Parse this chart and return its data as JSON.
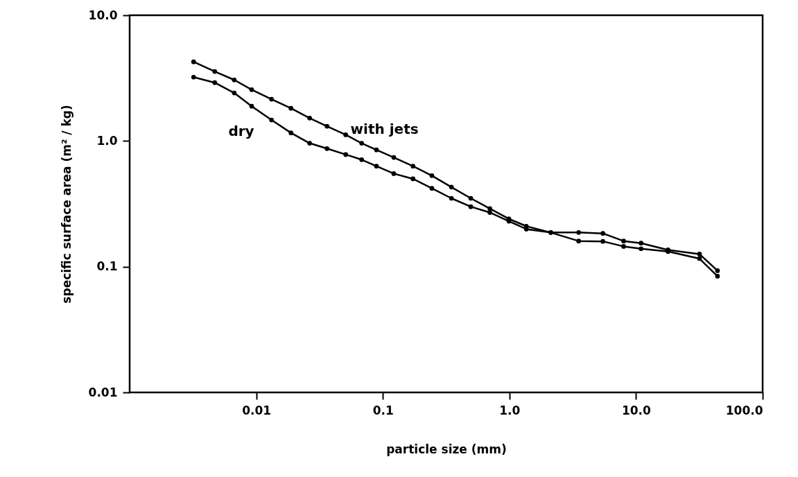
{
  "chart_data": {
    "type": "line",
    "xlabel": "particle size (mm)",
    "ylabel": "specific surface area (m² / kg)",
    "log": "xy",
    "grid": false,
    "marker": "circle",
    "line_style": "solid",
    "xlim": [
      0.001,
      100
    ],
    "xticks": [
      0.01,
      0.1,
      {
        "value": 1,
        "label": "1.0"
      },
      {
        "value": 10,
        "label": "10.0"
      },
      {
        "value": 100,
        "label": "100.0"
      }
    ],
    "ylim": [
      0.01,
      10
    ],
    "yticks": [
      0.01,
      0.1,
      {
        "value": 1,
        "label": "1.0"
      },
      {
        "value": 10,
        "label": "10.0"
      }
    ],
    "series": [
      {
        "name": "with jets",
        "color": "#000000",
        "x": [
          0.0032,
          0.0047,
          0.0067,
          0.0092,
          0.0132,
          0.0188,
          0.0264,
          0.0362,
          0.0509,
          0.068,
          0.089,
          0.122,
          0.173,
          0.244,
          0.348,
          0.495,
          0.7,
          0.99,
          1.36,
          2.12,
          3.52,
          5.47,
          7.98,
          10.96,
          17.9,
          31.7,
          44.0
        ],
        "values": [
          4.26,
          3.57,
          3.06,
          2.56,
          2.15,
          1.82,
          1.52,
          1.31,
          1.12,
          0.96,
          0.85,
          0.74,
          0.63,
          0.53,
          0.43,
          0.35,
          0.29,
          0.24,
          0.21,
          0.187,
          0.187,
          0.184,
          0.16,
          0.154,
          0.136,
          0.126,
          0.093
        ]
      },
      {
        "name": "dry",
        "color": "#000000",
        "x": [
          0.0032,
          0.0047,
          0.0067,
          0.0092,
          0.0132,
          0.0188,
          0.0264,
          0.0362,
          0.0509,
          0.068,
          0.089,
          0.122,
          0.173,
          0.244,
          0.348,
          0.495,
          0.7,
          0.99,
          1.36,
          2.12,
          3.52,
          5.47,
          7.98,
          10.96,
          17.9,
          31.7,
          44.0
        ],
        "values": [
          3.22,
          2.91,
          2.41,
          1.89,
          1.47,
          1.16,
          0.96,
          0.87,
          0.78,
          0.71,
          0.63,
          0.55,
          0.5,
          0.42,
          0.35,
          0.3,
          0.27,
          0.23,
          0.199,
          0.187,
          0.16,
          0.159,
          0.145,
          0.139,
          0.132,
          0.116,
          0.084
        ]
      }
    ]
  }
}
